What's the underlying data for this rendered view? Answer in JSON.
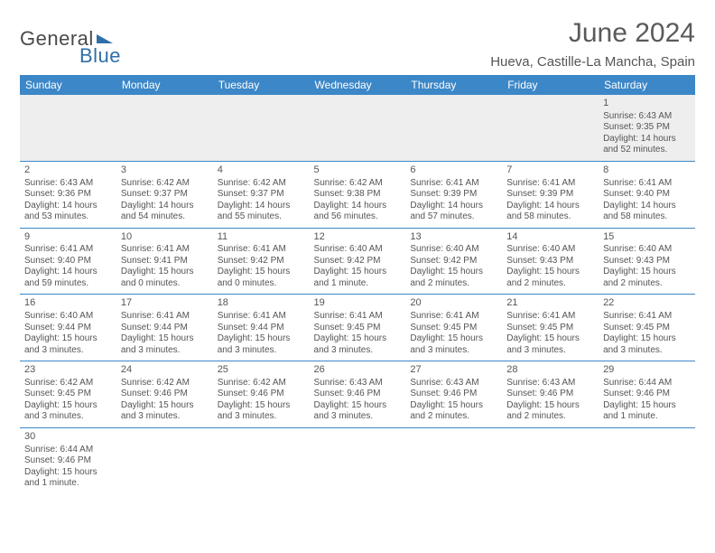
{
  "logo": {
    "part1": "General",
    "part2": "Blue"
  },
  "title": "June 2024",
  "location": "Hueva, Castille-La Mancha, Spain",
  "colors": {
    "header_bg": "#3c87c7",
    "text": "#555555"
  },
  "day_headers": [
    "Sunday",
    "Monday",
    "Tuesday",
    "Wednesday",
    "Thursday",
    "Friday",
    "Saturday"
  ],
  "weeks": [
    [
      null,
      null,
      null,
      null,
      null,
      null,
      {
        "n": "1",
        "sr": "Sunrise: 6:43 AM",
        "ss": "Sunset: 9:35 PM",
        "dl1": "Daylight: 14 hours",
        "dl2": "and 52 minutes."
      }
    ],
    [
      {
        "n": "2",
        "sr": "Sunrise: 6:43 AM",
        "ss": "Sunset: 9:36 PM",
        "dl1": "Daylight: 14 hours",
        "dl2": "and 53 minutes."
      },
      {
        "n": "3",
        "sr": "Sunrise: 6:42 AM",
        "ss": "Sunset: 9:37 PM",
        "dl1": "Daylight: 14 hours",
        "dl2": "and 54 minutes."
      },
      {
        "n": "4",
        "sr": "Sunrise: 6:42 AM",
        "ss": "Sunset: 9:37 PM",
        "dl1": "Daylight: 14 hours",
        "dl2": "and 55 minutes."
      },
      {
        "n": "5",
        "sr": "Sunrise: 6:42 AM",
        "ss": "Sunset: 9:38 PM",
        "dl1": "Daylight: 14 hours",
        "dl2": "and 56 minutes."
      },
      {
        "n": "6",
        "sr": "Sunrise: 6:41 AM",
        "ss": "Sunset: 9:39 PM",
        "dl1": "Daylight: 14 hours",
        "dl2": "and 57 minutes."
      },
      {
        "n": "7",
        "sr": "Sunrise: 6:41 AM",
        "ss": "Sunset: 9:39 PM",
        "dl1": "Daylight: 14 hours",
        "dl2": "and 58 minutes."
      },
      {
        "n": "8",
        "sr": "Sunrise: 6:41 AM",
        "ss": "Sunset: 9:40 PM",
        "dl1": "Daylight: 14 hours",
        "dl2": "and 58 minutes."
      }
    ],
    [
      {
        "n": "9",
        "sr": "Sunrise: 6:41 AM",
        "ss": "Sunset: 9:40 PM",
        "dl1": "Daylight: 14 hours",
        "dl2": "and 59 minutes."
      },
      {
        "n": "10",
        "sr": "Sunrise: 6:41 AM",
        "ss": "Sunset: 9:41 PM",
        "dl1": "Daylight: 15 hours",
        "dl2": "and 0 minutes."
      },
      {
        "n": "11",
        "sr": "Sunrise: 6:41 AM",
        "ss": "Sunset: 9:42 PM",
        "dl1": "Daylight: 15 hours",
        "dl2": "and 0 minutes."
      },
      {
        "n": "12",
        "sr": "Sunrise: 6:40 AM",
        "ss": "Sunset: 9:42 PM",
        "dl1": "Daylight: 15 hours",
        "dl2": "and 1 minute."
      },
      {
        "n": "13",
        "sr": "Sunrise: 6:40 AM",
        "ss": "Sunset: 9:42 PM",
        "dl1": "Daylight: 15 hours",
        "dl2": "and 2 minutes."
      },
      {
        "n": "14",
        "sr": "Sunrise: 6:40 AM",
        "ss": "Sunset: 9:43 PM",
        "dl1": "Daylight: 15 hours",
        "dl2": "and 2 minutes."
      },
      {
        "n": "15",
        "sr": "Sunrise: 6:40 AM",
        "ss": "Sunset: 9:43 PM",
        "dl1": "Daylight: 15 hours",
        "dl2": "and 2 minutes."
      }
    ],
    [
      {
        "n": "16",
        "sr": "Sunrise: 6:40 AM",
        "ss": "Sunset: 9:44 PM",
        "dl1": "Daylight: 15 hours",
        "dl2": "and 3 minutes."
      },
      {
        "n": "17",
        "sr": "Sunrise: 6:41 AM",
        "ss": "Sunset: 9:44 PM",
        "dl1": "Daylight: 15 hours",
        "dl2": "and 3 minutes."
      },
      {
        "n": "18",
        "sr": "Sunrise: 6:41 AM",
        "ss": "Sunset: 9:44 PM",
        "dl1": "Daylight: 15 hours",
        "dl2": "and 3 minutes."
      },
      {
        "n": "19",
        "sr": "Sunrise: 6:41 AM",
        "ss": "Sunset: 9:45 PM",
        "dl1": "Daylight: 15 hours",
        "dl2": "and 3 minutes."
      },
      {
        "n": "20",
        "sr": "Sunrise: 6:41 AM",
        "ss": "Sunset: 9:45 PM",
        "dl1": "Daylight: 15 hours",
        "dl2": "and 3 minutes."
      },
      {
        "n": "21",
        "sr": "Sunrise: 6:41 AM",
        "ss": "Sunset: 9:45 PM",
        "dl1": "Daylight: 15 hours",
        "dl2": "and 3 minutes."
      },
      {
        "n": "22",
        "sr": "Sunrise: 6:41 AM",
        "ss": "Sunset: 9:45 PM",
        "dl1": "Daylight: 15 hours",
        "dl2": "and 3 minutes."
      }
    ],
    [
      {
        "n": "23",
        "sr": "Sunrise: 6:42 AM",
        "ss": "Sunset: 9:45 PM",
        "dl1": "Daylight: 15 hours",
        "dl2": "and 3 minutes."
      },
      {
        "n": "24",
        "sr": "Sunrise: 6:42 AM",
        "ss": "Sunset: 9:46 PM",
        "dl1": "Daylight: 15 hours",
        "dl2": "and 3 minutes."
      },
      {
        "n": "25",
        "sr": "Sunrise: 6:42 AM",
        "ss": "Sunset: 9:46 PM",
        "dl1": "Daylight: 15 hours",
        "dl2": "and 3 minutes."
      },
      {
        "n": "26",
        "sr": "Sunrise: 6:43 AM",
        "ss": "Sunset: 9:46 PM",
        "dl1": "Daylight: 15 hours",
        "dl2": "and 3 minutes."
      },
      {
        "n": "27",
        "sr": "Sunrise: 6:43 AM",
        "ss": "Sunset: 9:46 PM",
        "dl1": "Daylight: 15 hours",
        "dl2": "and 2 minutes."
      },
      {
        "n": "28",
        "sr": "Sunrise: 6:43 AM",
        "ss": "Sunset: 9:46 PM",
        "dl1": "Daylight: 15 hours",
        "dl2": "and 2 minutes."
      },
      {
        "n": "29",
        "sr": "Sunrise: 6:44 AM",
        "ss": "Sunset: 9:46 PM",
        "dl1": "Daylight: 15 hours",
        "dl2": "and 1 minute."
      }
    ],
    [
      {
        "n": "30",
        "sr": "Sunrise: 6:44 AM",
        "ss": "Sunset: 9:46 PM",
        "dl1": "Daylight: 15 hours",
        "dl2": "and 1 minute."
      },
      null,
      null,
      null,
      null,
      null,
      null
    ]
  ]
}
